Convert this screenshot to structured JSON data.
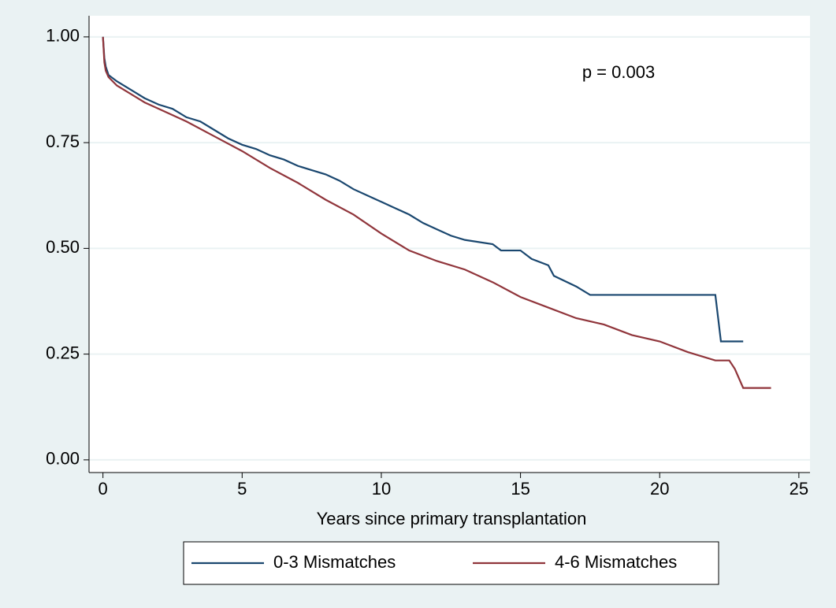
{
  "chart_data": {
    "type": "line",
    "annotation": "p = 0.003",
    "x_label": "Years since primary transplantation",
    "xlim": [
      -0.5,
      25.4
    ],
    "ylim": [
      -0.03,
      1.05
    ],
    "xticks": [
      0,
      5,
      10,
      15,
      20,
      25
    ],
    "yticks": [
      {
        "value": 0,
        "label": "0.00"
      },
      {
        "value": 0.25,
        "label": "0.25"
      },
      {
        "value": 0.5,
        "label": "0.50"
      },
      {
        "value": 0.75,
        "label": "0.75"
      },
      {
        "value": 1,
        "label": "1.00"
      }
    ],
    "grid": true,
    "legend": "bottom",
    "series": [
      {
        "name": "0-3 Mismatches",
        "color": "#1a476f",
        "x": [
          0,
          0.05,
          0.1,
          0.2,
          0.5,
          1,
          1.5,
          2,
          2.5,
          3,
          3.5,
          4,
          4.5,
          5,
          5.5,
          6,
          6.5,
          7,
          7.5,
          8,
          8.5,
          9,
          9.5,
          10,
          10.5,
          11,
          11.5,
          12,
          12.5,
          13,
          14,
          14.3,
          15,
          15.4,
          16,
          16.2,
          17,
          17.5,
          22,
          22.1,
          22.2,
          23
        ],
        "values": [
          1.0,
          0.95,
          0.93,
          0.91,
          0.895,
          0.875,
          0.855,
          0.84,
          0.83,
          0.81,
          0.8,
          0.78,
          0.76,
          0.745,
          0.735,
          0.72,
          0.71,
          0.695,
          0.685,
          0.675,
          0.66,
          0.64,
          0.625,
          0.61,
          0.595,
          0.58,
          0.56,
          0.545,
          0.53,
          0.52,
          0.51,
          0.495,
          0.495,
          0.475,
          0.46,
          0.435,
          0.41,
          0.39,
          0.39,
          0.335,
          0.28,
          0.28
        ]
      },
      {
        "name": "4-6 Mismatches",
        "color": "#90353b",
        "x": [
          0,
          0.05,
          0.1,
          0.2,
          0.5,
          1,
          1.5,
          2,
          3,
          4,
          5,
          6,
          7,
          8,
          9,
          10,
          11,
          12,
          13,
          14,
          15,
          16,
          17,
          18,
          19,
          20,
          21,
          21.5,
          22,
          22.5,
          22.7,
          23,
          24
        ],
        "values": [
          1.0,
          0.94,
          0.92,
          0.905,
          0.885,
          0.865,
          0.845,
          0.83,
          0.8,
          0.765,
          0.73,
          0.69,
          0.655,
          0.615,
          0.58,
          0.535,
          0.495,
          0.47,
          0.45,
          0.42,
          0.385,
          0.36,
          0.335,
          0.32,
          0.295,
          0.28,
          0.255,
          0.245,
          0.235,
          0.235,
          0.215,
          0.17,
          0.17
        ]
      }
    ]
  }
}
